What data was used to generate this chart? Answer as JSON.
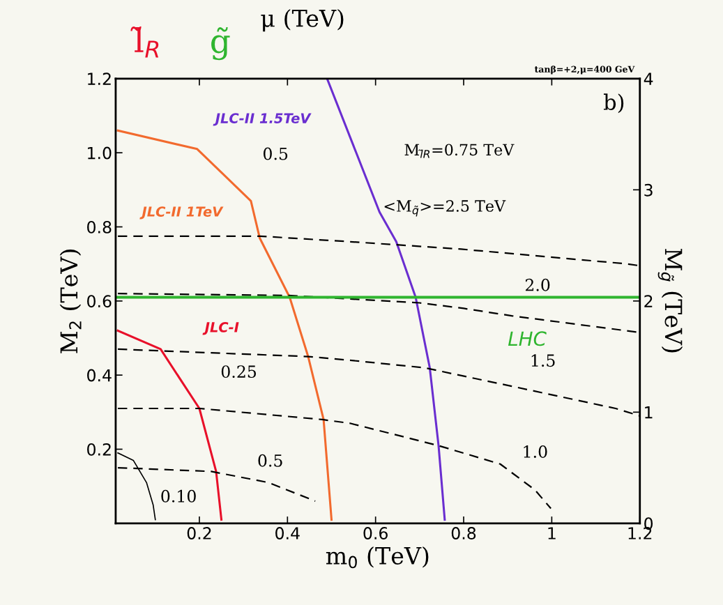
{
  "chart_data": {
    "type": "line",
    "xlabel": "m$_{0}$ (TeV)",
    "ylabel": "M$_{2}$ (TeV)",
    "y2label": "M$_{g̃}$ (TeV)",
    "xlim": [
      0.01,
      1.2
    ],
    "ylim": [
      0,
      1.2
    ],
    "y2lim": [
      0,
      4
    ],
    "xticks": [
      0.2,
      0.4,
      0.6,
      0.8,
      1,
      1.2
    ],
    "yticks": [
      0.2,
      0.4,
      0.6,
      0.8,
      {
        "value": 1.0,
        "label": "1.0"
      },
      1.2
    ],
    "y2ticks": [
      0,
      1,
      2,
      3,
      4
    ],
    "grid": false,
    "legend": false,
    "marker": "none",
    "series": [
      {
        "x": [
          0.015,
          0.05,
          0.08,
          0.095,
          0.1
        ],
        "values": [
          0.19,
          0.17,
          0.11,
          0.05,
          0.01
        ],
        "color": "#000000",
        "line_style": "solid"
      },
      {
        "name": "JLC-I",
        "x": [
          0.015,
          0.112,
          0.2,
          0.238,
          0.25
        ],
        "values": [
          0.52,
          0.47,
          0.31,
          0.14,
          0.01
        ],
        "color": "#e8102a",
        "line_style": "solid"
      },
      {
        "name": "JLC-II 1TeV",
        "x": [
          0.015,
          0.195,
          0.317,
          0.337,
          0.405,
          0.447,
          0.482,
          0.5
        ],
        "values": [
          1.06,
          1.01,
          0.87,
          0.77,
          0.61,
          0.45,
          0.28,
          0.01
        ],
        "color": "#f26a2e",
        "line_style": "solid"
      },
      {
        "name": "JLC-II 1.5TeV",
        "x": [
          0.49,
          0.609,
          0.647,
          0.691,
          0.723,
          0.743,
          0.757
        ],
        "values": [
          1.2,
          0.84,
          0.76,
          0.61,
          0.42,
          0.21,
          0.01
        ],
        "color": "#6a2ed0",
        "line_style": "solid"
      },
      {
        "x": [
          0.015,
          0.227,
          0.357,
          0.463
        ],
        "values": [
          0.15,
          0.14,
          0.11,
          0.06
        ],
        "color": "#000000",
        "line_style": "dashed"
      },
      {
        "x": [
          0.015,
          0.2,
          0.479,
          0.542,
          0.742,
          0.883,
          0.962,
          0.998
        ],
        "values": [
          0.31,
          0.31,
          0.28,
          0.27,
          0.21,
          0.16,
          0.09,
          0.04
        ],
        "color": "#000000",
        "line_style": "dashed"
      },
      {
        "x": [
          0.015,
          0.447,
          0.542,
          0.71,
          0.909,
          1.145,
          1.2
        ],
        "values": [
          0.47,
          0.45,
          0.44,
          0.42,
          0.37,
          0.31,
          0.29
        ],
        "color": "#000000",
        "line_style": "dashed"
      },
      {
        "x": [
          0.015,
          0.4,
          0.7,
          0.8,
          0.909,
          1.2
        ],
        "values": [
          0.62,
          0.615,
          0.595,
          0.58,
          0.56,
          0.515
        ],
        "color": "#000000",
        "line_style": "dashed"
      },
      {
        "x": [
          0.015,
          0.337,
          0.542,
          0.794,
          1.172,
          1.2
        ],
        "values": [
          0.775,
          0.775,
          0.76,
          0.74,
          0.7,
          0.695
        ],
        "color": "#000000",
        "line_style": "dashed"
      }
    ],
    "ref_lines": [
      {
        "axis": "y",
        "value": 0.61,
        "label": "LHC",
        "color": "#2fb52f"
      }
    ],
    "annotations": [
      "0.10",
      "0.25",
      "0.5",
      "0.5",
      "1.0",
      "1.5",
      "2.0",
      "M$_{l̃R}$=0.75 TeV",
      "<M$_{q̃}$>=2.5 TeV",
      "b)",
      "tanβ=+2,μ=400 GeV",
      "μ (TeV)",
      "l̃$_{R}$",
      "g̃"
    ]
  }
}
